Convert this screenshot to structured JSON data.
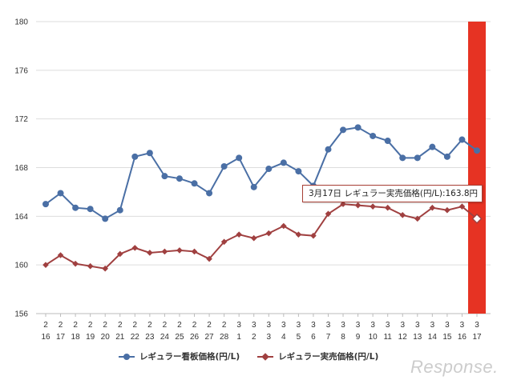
{
  "chart_data": {
    "type": "line",
    "x": [
      [
        "2",
        "16"
      ],
      [
        "2",
        "17"
      ],
      [
        "2",
        "18"
      ],
      [
        "2",
        "19"
      ],
      [
        "2",
        "20"
      ],
      [
        "2",
        "21"
      ],
      [
        "2",
        "22"
      ],
      [
        "2",
        "23"
      ],
      [
        "2",
        "24"
      ],
      [
        "2",
        "25"
      ],
      [
        "2",
        "26"
      ],
      [
        "2",
        "27"
      ],
      [
        "2",
        "28"
      ],
      [
        "3",
        "1"
      ],
      [
        "3",
        "2"
      ],
      [
        "3",
        "3"
      ],
      [
        "3",
        "4"
      ],
      [
        "3",
        "5"
      ],
      [
        "3",
        "6"
      ],
      [
        "3",
        "7"
      ],
      [
        "3",
        "8"
      ],
      [
        "3",
        "9"
      ],
      [
        "3",
        "10"
      ],
      [
        "3",
        "11"
      ],
      [
        "3",
        "12"
      ],
      [
        "3",
        "13"
      ],
      [
        "3",
        "14"
      ],
      [
        "3",
        "15"
      ],
      [
        "3",
        "16"
      ],
      [
        "3",
        "17"
      ]
    ],
    "ylim": [
      156,
      180
    ],
    "yticks": [
      156,
      160,
      164,
      168,
      172,
      176,
      180
    ],
    "grid": true,
    "legend_position": "bottom",
    "highlight_category_index": 29,
    "series": [
      {
        "name": "レギュラー看板価格(円/L)",
        "color": "#4a6fa5",
        "marker": "circle",
        "values": [
          165.0,
          165.9,
          164.7,
          164.6,
          163.8,
          164.5,
          168.9,
          169.2,
          167.3,
          167.1,
          166.7,
          165.9,
          168.1,
          168.8,
          166.4,
          167.9,
          168.4,
          167.7,
          166.5,
          169.5,
          171.1,
          171.3,
          170.6,
          170.2,
          168.8,
          168.8,
          169.7,
          168.9,
          170.3,
          169.4
        ]
      },
      {
        "name": "レギュラー実売価格(円/L)",
        "color": "#a04040",
        "marker": "diamond",
        "values": [
          160.0,
          160.8,
          160.1,
          159.9,
          159.7,
          160.9,
          161.4,
          161.0,
          161.1,
          161.2,
          161.1,
          160.5,
          161.9,
          162.5,
          162.2,
          162.6,
          163.2,
          162.5,
          162.4,
          164.2,
          165.0,
          164.9,
          164.8,
          164.7,
          164.1,
          163.8,
          164.7,
          164.5,
          164.8,
          163.8
        ]
      }
    ],
    "tooltip": "3月17日 レギュラー実売価格(円/L):163.8円",
    "highlight_color": "#e63323"
  },
  "watermark": "Response."
}
